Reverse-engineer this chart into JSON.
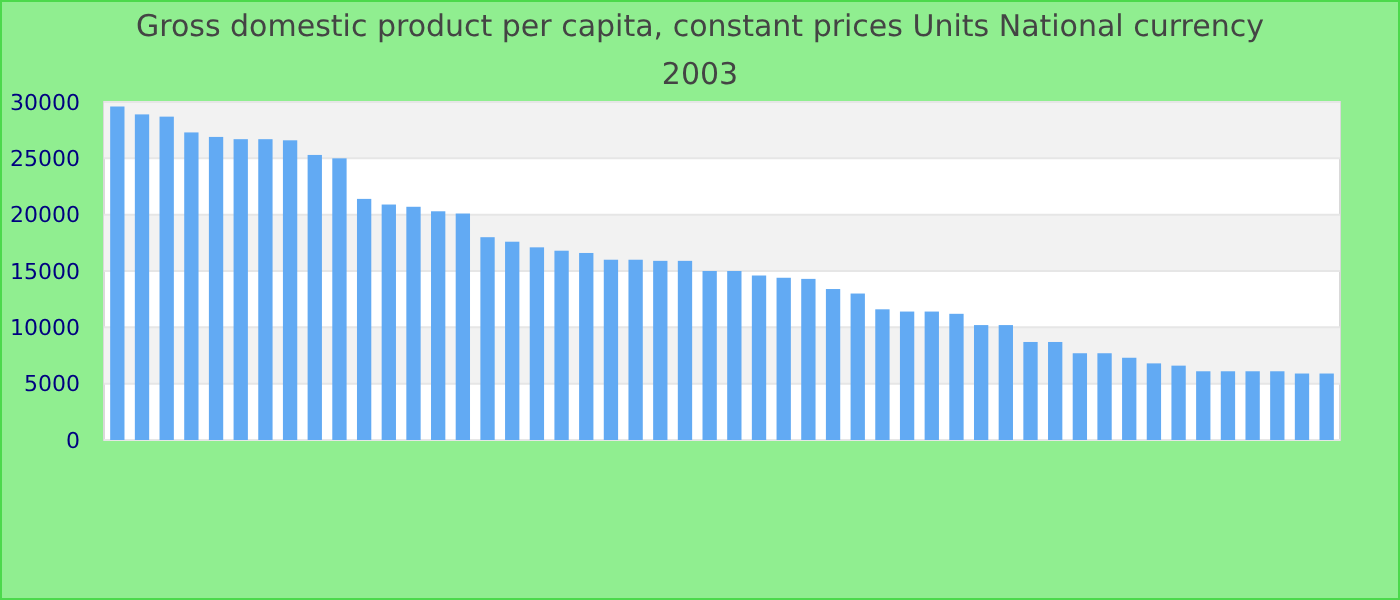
{
  "chart_data": {
    "type": "bar",
    "title": "Gross domestic product per capita, constant prices Units National currency",
    "subtitle": "2003",
    "categories": [
      null,
      null,
      null,
      null,
      null,
      null,
      null,
      null,
      null,
      null,
      null,
      null,
      null,
      null,
      null,
      null,
      null,
      null,
      null,
      null,
      null,
      null,
      null,
      null,
      null,
      null,
      null,
      null,
      null,
      null,
      null,
      null,
      null,
      null,
      null,
      null,
      null,
      null,
      null,
      null,
      null,
      null,
      null,
      null,
      null,
      null,
      null,
      null,
      null,
      null
    ],
    "values": [
      29600,
      28900,
      28700,
      27300,
      26900,
      26700,
      26700,
      26600,
      25300,
      25000,
      21400,
      20900,
      20700,
      20300,
      20100,
      18000,
      17600,
      17100,
      16800,
      16600,
      16000,
      16000,
      15900,
      15900,
      15000,
      15000,
      14600,
      14400,
      14300,
      13400,
      13000,
      11600,
      11400,
      11400,
      11200,
      10200,
      10200,
      8700,
      8700,
      7700,
      7700,
      7300,
      6800,
      6600,
      6100,
      6100,
      6100,
      6100,
      5900,
      5900
    ],
    "color": "#62aaf3",
    "ylim": [
      0,
      30000
    ],
    "yticks": [
      0,
      5000,
      10000,
      15000,
      20000,
      25000,
      30000
    ],
    "grid": "y"
  }
}
